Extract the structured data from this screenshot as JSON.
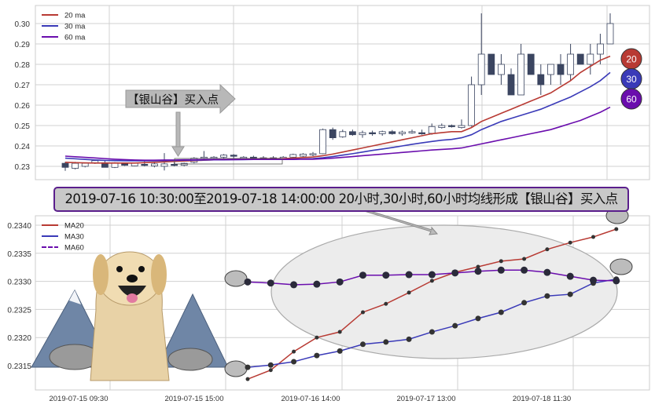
{
  "chart_data": [
    {
      "type": "candlestick",
      "title": "",
      "ylim": [
        0.2225,
        0.308
      ],
      "yticks": [
        "0.23",
        "0.24",
        "0.25",
        "0.26",
        "0.27",
        "0.28",
        "0.29",
        "0.30"
      ],
      "legend": {
        "placement": "top-left",
        "entries": [
          "20 ma",
          "30 ma",
          "60 ma"
        ]
      },
      "colors": {
        "ma20": "#b83a33",
        "ma30": "#3a3ab8",
        "ma60": "#6a0dad",
        "down": "#3b4560",
        "up": "#ffffff"
      },
      "candles_ohlc": [
        [
          0.2315,
          0.2322,
          0.2278,
          0.2295
        ],
        [
          0.229,
          0.2322,
          0.2285,
          0.2315
        ],
        [
          0.23,
          0.2315,
          0.2295,
          0.2315
        ],
        [
          0.2318,
          0.233,
          0.2312,
          0.2328
        ],
        [
          0.2318,
          0.233,
          0.2295,
          0.2295
        ],
        [
          0.2295,
          0.232,
          0.2292,
          0.2318
        ],
        [
          0.2312,
          0.2318,
          0.2302,
          0.2305
        ],
        [
          0.2302,
          0.2318,
          0.23,
          0.2315
        ],
        [
          0.231,
          0.2325,
          0.23,
          0.2308
        ],
        [
          0.2302,
          0.232,
          0.2295,
          0.2312
        ],
        [
          0.23,
          0.2365,
          0.228,
          0.2312
        ],
        [
          0.231,
          0.232,
          0.23,
          0.2305
        ],
        [
          0.2305,
          0.2318,
          0.23,
          0.2315
        ],
        [
          0.232,
          0.2345,
          0.2315,
          0.234
        ],
        [
          0.234,
          0.2375,
          0.233,
          0.2345
        ],
        [
          0.234,
          0.235,
          0.233,
          0.2345
        ],
        [
          0.2345,
          0.236,
          0.234,
          0.2355
        ],
        [
          0.2355,
          0.236,
          0.234,
          0.235
        ],
        [
          0.2342,
          0.235,
          0.2335,
          0.2345
        ],
        [
          0.2345,
          0.2352,
          0.2335,
          0.234
        ],
        [
          0.234,
          0.235,
          0.2335,
          0.2342
        ],
        [
          0.2342,
          0.235,
          0.2335,
          0.2338
        ],
        [
          0.2338,
          0.235,
          0.2335,
          0.2345
        ],
        [
          0.2345,
          0.2362,
          0.234,
          0.2358
        ],
        [
          0.235,
          0.2365,
          0.2345,
          0.236
        ],
        [
          0.2358,
          0.237,
          0.235,
          0.2362
        ],
        [
          0.2362,
          0.2485,
          0.236,
          0.248
        ],
        [
          0.248,
          0.249,
          0.243,
          0.244
        ],
        [
          0.2445,
          0.248,
          0.244,
          0.247
        ],
        [
          0.247,
          0.248,
          0.245,
          0.2455
        ],
        [
          0.2455,
          0.2475,
          0.244,
          0.2465
        ],
        [
          0.2465,
          0.2475,
          0.245,
          0.246
        ],
        [
          0.246,
          0.2475,
          0.245,
          0.247
        ],
        [
          0.247,
          0.2478,
          0.2455,
          0.246
        ],
        [
          0.246,
          0.2475,
          0.245,
          0.2468
        ],
        [
          0.2468,
          0.248,
          0.246,
          0.247
        ],
        [
          0.2465,
          0.248,
          0.2455,
          0.2462
        ],
        [
          0.2462,
          0.251,
          0.2455,
          0.2495
        ],
        [
          0.249,
          0.251,
          0.2485,
          0.25
        ],
        [
          0.25,
          0.2505,
          0.249,
          0.2495
        ],
        [
          0.249,
          0.253,
          0.2485,
          0.25
        ],
        [
          0.25,
          0.274,
          0.2495,
          0.27
        ],
        [
          0.27,
          0.305,
          0.265,
          0.285
        ],
        [
          0.285,
          0.285,
          0.275,
          0.275
        ],
        [
          0.275,
          0.285,
          0.27,
          0.28
        ],
        [
          0.275,
          0.278,
          0.265,
          0.265
        ],
        [
          0.265,
          0.29,
          0.265,
          0.285
        ],
        [
          0.285,
          0.285,
          0.275,
          0.275
        ],
        [
          0.275,
          0.28,
          0.265,
          0.27
        ],
        [
          0.275,
          0.28,
          0.27,
          0.28
        ],
        [
          0.28,
          0.285,
          0.27,
          0.275
        ],
        [
          0.275,
          0.29,
          0.272,
          0.285
        ],
        [
          0.285,
          0.285,
          0.28,
          0.28
        ],
        [
          0.28,
          0.29,
          0.275,
          0.285
        ],
        [
          0.285,
          0.295,
          0.28,
          0.29
        ],
        [
          0.29,
          0.305,
          0.29,
          0.3
        ]
      ],
      "ma20": [
        0.232,
        0.2318,
        0.2317,
        0.2316,
        0.2316,
        0.2316,
        0.2316,
        0.2316,
        0.2318,
        0.232,
        0.2322,
        0.2324,
        0.2326,
        0.2328,
        0.233,
        0.2332,
        0.2334,
        0.2335,
        0.2336,
        0.2337,
        0.2338,
        0.2338,
        0.2338,
        0.234,
        0.2343,
        0.2346,
        0.2352,
        0.236,
        0.237,
        0.238,
        0.239,
        0.24,
        0.241,
        0.242,
        0.243,
        0.244,
        0.245,
        0.246,
        0.2465,
        0.247,
        0.247,
        0.249,
        0.252,
        0.254,
        0.256,
        0.258,
        0.26,
        0.262,
        0.264,
        0.266,
        0.269,
        0.272,
        0.276,
        0.279,
        0.282,
        0.284
      ],
      "ma30": [
        0.234,
        0.2337,
        0.2334,
        0.2331,
        0.2329,
        0.2328,
        0.2327,
        0.2327,
        0.2327,
        0.2327,
        0.2328,
        0.2329,
        0.233,
        0.233,
        0.2331,
        0.2332,
        0.2332,
        0.2333,
        0.2333,
        0.2334,
        0.2334,
        0.2334,
        0.2334,
        0.2335,
        0.2336,
        0.2338,
        0.2342,
        0.2348,
        0.2355,
        0.2362,
        0.237,
        0.2378,
        0.2385,
        0.2392,
        0.24,
        0.2408,
        0.2415,
        0.2422,
        0.2428,
        0.2432,
        0.244,
        0.2455,
        0.248,
        0.25,
        0.252,
        0.2535,
        0.255,
        0.2565,
        0.258,
        0.26,
        0.262,
        0.264,
        0.2665,
        0.269,
        0.272,
        0.276
      ],
      "ma60": [
        0.235,
        0.2347,
        0.2344,
        0.2341,
        0.2338,
        0.2335,
        0.2333,
        0.2331,
        0.233,
        0.233,
        0.2331,
        0.2331,
        0.2332,
        0.2332,
        0.2333,
        0.2333,
        0.2333,
        0.2333,
        0.2334,
        0.2334,
        0.2334,
        0.2334,
        0.2334,
        0.2334,
        0.2335,
        0.2335,
        0.2337,
        0.234,
        0.2344,
        0.2348,
        0.2352,
        0.2356,
        0.236,
        0.2364,
        0.2368,
        0.2372,
        0.2376,
        0.238,
        0.2383,
        0.2386,
        0.239,
        0.24,
        0.241,
        0.242,
        0.243,
        0.244,
        0.245,
        0.246,
        0.247,
        0.248,
        0.2495,
        0.251,
        0.2525,
        0.2545,
        0.2565,
        0.259
      ],
      "annotation": "【银山谷】买入点",
      "end_labels": [
        "20",
        "30",
        "60"
      ]
    },
    {
      "type": "line",
      "ylim": [
        0.23108,
        0.23438
      ],
      "yticks": [
        "0.2315",
        "0.2320",
        "0.2325",
        "0.2330",
        "0.2335",
        "0.2340"
      ],
      "xticks": [
        "2019-07-15 09:30",
        "2019-07-15 15:00",
        "2019-07-16 14:00",
        "2019-07-17 13:00",
        "2019-07-18 11:30"
      ],
      "legend": {
        "placement": "top-left",
        "entries": [
          "MA20",
          "MA30",
          "MA60"
        ]
      },
      "series": [
        {
          "name": "MA20",
          "color": "#b83a33",
          "values": [
            0.23126,
            0.23142,
            0.23175,
            0.232,
            0.2321,
            0.23245,
            0.2326,
            0.2328,
            0.23301,
            0.23316,
            0.23326,
            0.23336,
            0.2334,
            0.23357,
            0.23369,
            0.23379,
            0.23393
          ]
        },
        {
          "name": "MA30",
          "color": "#3a3ab8",
          "values": [
            0.23147,
            0.23151,
            0.23157,
            0.23168,
            0.23176,
            0.23188,
            0.23192,
            0.23197,
            0.2321,
            0.23221,
            0.23234,
            0.23245,
            0.23262,
            0.23274,
            0.23277,
            0.23297,
            0.23304
          ]
        },
        {
          "name": "MA60",
          "color": "#6a0dad",
          "values": [
            0.23299,
            0.23297,
            0.23294,
            0.23295,
            0.23299,
            0.23311,
            0.23311,
            0.23312,
            0.23312,
            0.23315,
            0.23318,
            0.2332,
            0.2332,
            0.23316,
            0.23309,
            0.23302,
            0.23301
          ]
        }
      ]
    }
  ],
  "banner": "2019-07-16 10:30:00至2019-07-18 14:00:00 20小时,30小时,60小时均线形成【银山谷】买入点"
}
